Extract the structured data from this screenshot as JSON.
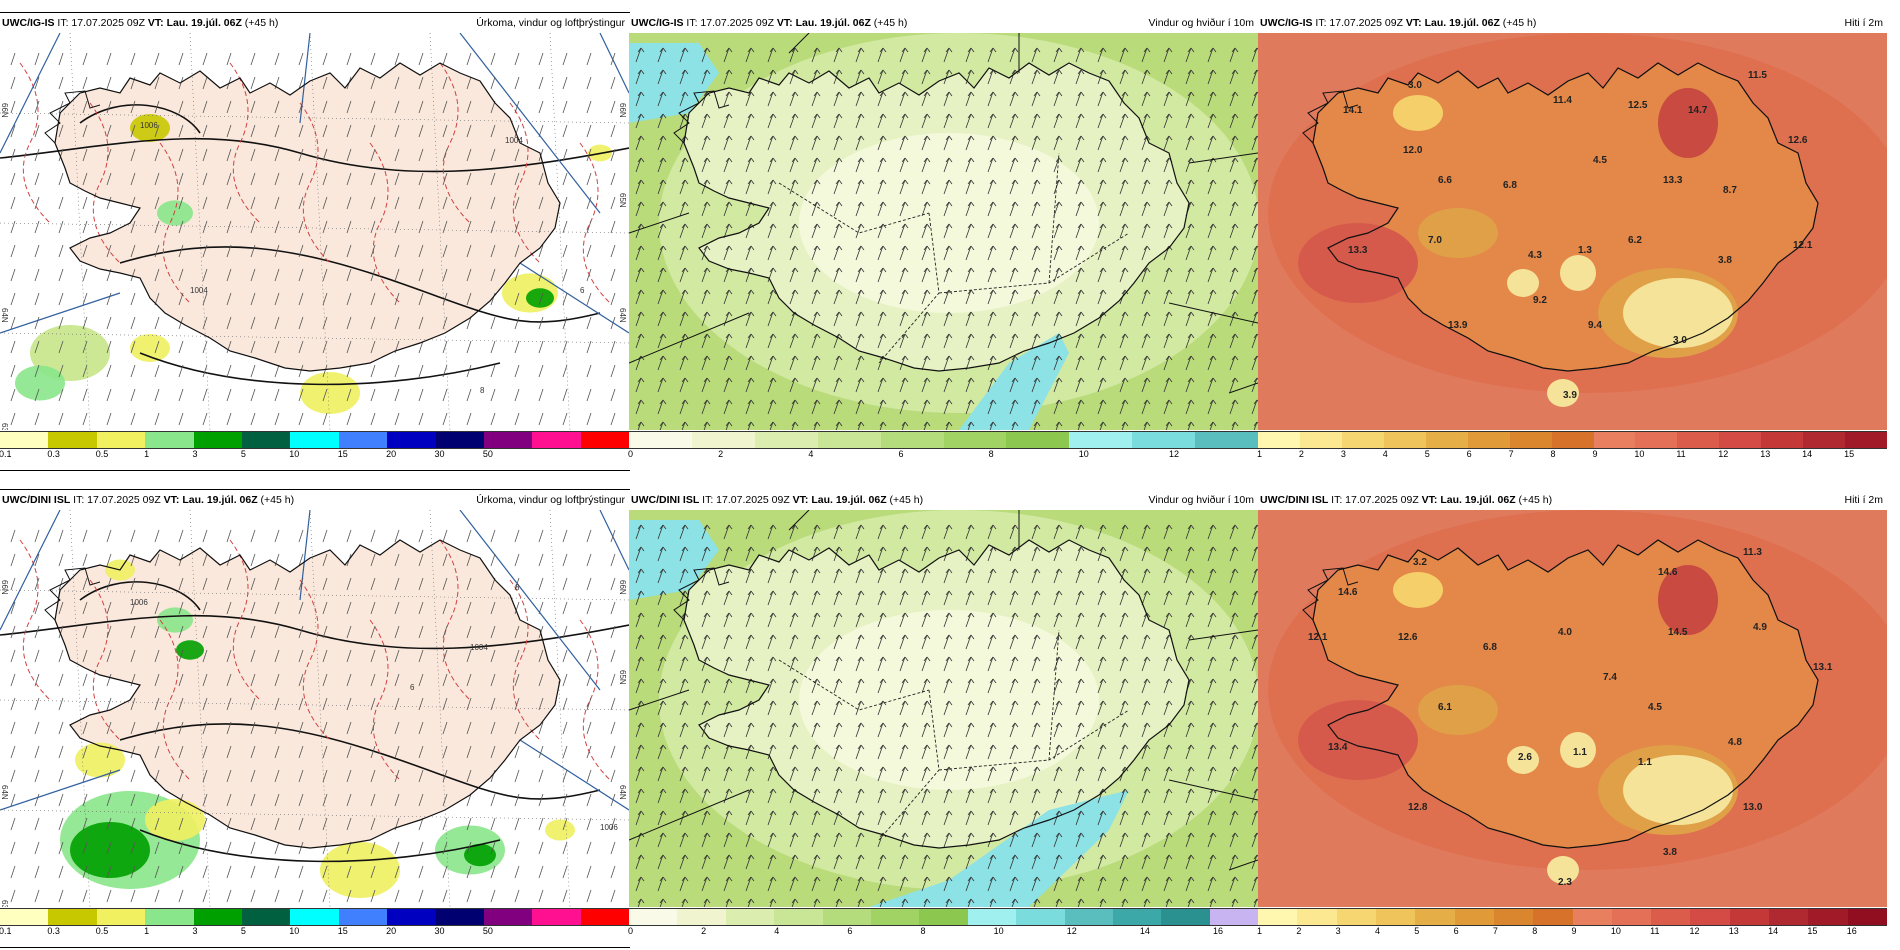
{
  "panels": [
    {
      "id": "p1",
      "model": "UWC/IG-IS",
      "it": "IT: 17.07.2025 09Z",
      "vt_label": "VT:",
      "vt": "Lau. 19.júl. 06Z",
      "lead": "(+45 h)",
      "title": "Úrkoma, vindur og loftþrýstingur",
      "type": "precip",
      "colors": [
        "#ffffc0",
        "#c8c800",
        "#f0f060",
        "#8ae68a",
        "#00a000",
        "#006040",
        "#00ffff",
        "#4080ff",
        "#0000c0",
        "#000070",
        "#800080",
        "#ff1090",
        "#ff0000"
      ],
      "ticks": [
        "0.1",
        "0.3",
        "0.5",
        "1",
        "3",
        "5",
        "10",
        "15",
        "20",
        "30",
        "50"
      ],
      "labels": [
        [
          "1006",
          ""
        ],
        [
          "1004",
          ""
        ],
        [
          "1004",
          ""
        ],
        [
          "8",
          ""
        ],
        [
          "6",
          ""
        ]
      ],
      "lat_labels": [
        "66N",
        "66N",
        "65N",
        "64N",
        "64N",
        "63N"
      ]
    },
    {
      "id": "p2",
      "model": "UWC/IG-IS",
      "it": "IT: 17.07.2025 09Z",
      "vt_label": "VT:",
      "vt": "Lau. 19.júl. 06Z",
      "lead": "(+45 h)",
      "title": "Vindur og hviður í 10m",
      "type": "wind",
      "colors": [
        "#fafae8",
        "#f0f5d0",
        "#dcedb0",
        "#c8e696",
        "#b4dc7c",
        "#a0d264",
        "#8cc850",
        "#a0f0f0",
        "#7adcdc",
        "#5abebe"
      ],
      "ticks": [
        "0",
        "2",
        "4",
        "6",
        "8",
        "10",
        "12"
      ]
    },
    {
      "id": "p3",
      "model": "UWC/IG-IS",
      "it": "IT: 17.07.2025 09Z",
      "vt_label": "VT:",
      "vt": "Lau. 19.júl. 06Z",
      "lead": "(+45 h)",
      "title": "Hiti í 2m",
      "type": "temp",
      "colors": [
        "#fff7b0",
        "#fbe890",
        "#f5d670",
        "#efc45a",
        "#e6ae46",
        "#e09a38",
        "#d9862e",
        "#d7722a",
        "#e88060",
        "#e47058",
        "#dc5c4c",
        "#d44a44",
        "#c43838",
        "#b02830",
        "#a01a28"
      ],
      "ticks": [
        "1",
        "2",
        "3",
        "4",
        "5",
        "6",
        "7",
        "8",
        "9",
        "10",
        "11",
        "12",
        "13",
        "14",
        "15"
      ],
      "values": [
        "3.0",
        "14.1",
        "12.0",
        "6.6",
        "6.8",
        "11.4",
        "12.5",
        "14.7",
        "11.5",
        "4.5",
        "13.3",
        "12.6",
        "8.7",
        "13.3",
        "7.0",
        "4.3",
        "1.3",
        "6.2",
        "3.8",
        "12.1",
        "9.2",
        "13.9",
        "9.4",
        "3.0",
        "3.9"
      ]
    },
    {
      "id": "p4",
      "model": "UWC/DINI ISL",
      "it": "IT: 17.07.2025 09Z",
      "vt_label": "VT:",
      "vt": "Lau. 19.júl. 06Z",
      "lead": "(+45 h)",
      "title": "Úrkoma, vindur og loftþrýstingur",
      "type": "precip",
      "colors": [
        "#ffffc0",
        "#c8c800",
        "#f0f060",
        "#8ae68a",
        "#00a000",
        "#006040",
        "#00ffff",
        "#4080ff",
        "#0000c0",
        "#000070",
        "#800080",
        "#ff1090",
        "#ff0000"
      ],
      "ticks": [
        "0.1",
        "0.3",
        "0.5",
        "1",
        "3",
        "5",
        "10",
        "15",
        "20",
        "30",
        "50"
      ],
      "labels": [
        [
          "1006",
          ""
        ],
        [
          "1004",
          ""
        ],
        [
          "1006",
          ""
        ],
        [
          "8",
          ""
        ],
        [
          "6",
          ""
        ]
      ],
      "lat_labels": [
        "66N",
        "66N",
        "65N",
        "64N",
        "64N",
        "63N"
      ]
    },
    {
      "id": "p5",
      "model": "UWC/DINI ISL",
      "it": "IT: 17.07.2025 09Z",
      "vt_label": "VT:",
      "vt": "Lau. 19.júl. 06Z",
      "lead": "(+45 h)",
      "title": "Vindur og hviður í 10m",
      "type": "wind",
      "colors": [
        "#fafae8",
        "#f0f5d0",
        "#dcedb0",
        "#c8e696",
        "#b4dc7c",
        "#a0d264",
        "#8cc850",
        "#a0f0f0",
        "#7adcdc",
        "#5abebe",
        "#3ca8a8",
        "#2a9090",
        "#c8b4f0"
      ],
      "ticks": [
        "0",
        "2",
        "4",
        "6",
        "8",
        "10",
        "12",
        "14",
        "16"
      ]
    },
    {
      "id": "p6",
      "model": "UWC/DINI ISL",
      "it": "IT: 17.07.2025 09Z",
      "vt_label": "VT:",
      "vt": "Lau. 19.júl. 06Z",
      "lead": "(+45 h)",
      "title": "Hiti í 2m",
      "type": "temp",
      "colors": [
        "#fff7b0",
        "#fbe890",
        "#f5d670",
        "#efc45a",
        "#e6ae46",
        "#e09a38",
        "#d9862e",
        "#d7722a",
        "#e88060",
        "#e47058",
        "#dc5c4c",
        "#d44a44",
        "#c43838",
        "#b02830",
        "#a01a28",
        "#900e20"
      ],
      "ticks": [
        "1",
        "2",
        "3",
        "4",
        "5",
        "6",
        "7",
        "8",
        "9",
        "10",
        "11",
        "12",
        "13",
        "14",
        "15",
        "16"
      ],
      "values": [
        "3.2",
        "14.6",
        "12.1",
        "12.6",
        "6.8",
        "4.0",
        "14.6",
        "11.3",
        "14.5",
        "4.9",
        "7.4",
        "13.1",
        "6.1",
        "4.5",
        "13.4",
        "2.6",
        "1.1",
        "4.8",
        "1.1",
        "12.8",
        "13.0",
        "3.8",
        "2.3"
      ]
    }
  ]
}
